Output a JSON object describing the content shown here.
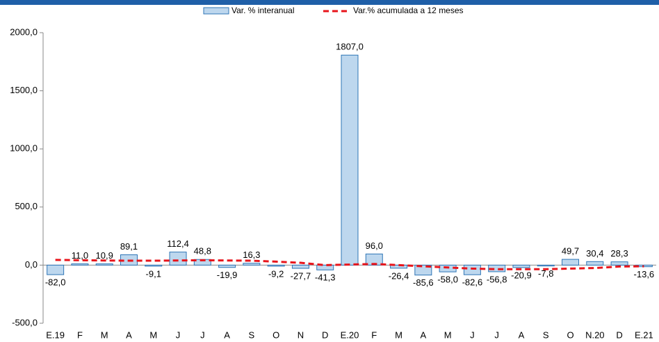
{
  "chart_data": {
    "type": "combo",
    "categories": [
      "E.19",
      "F",
      "M",
      "A",
      "M",
      "J",
      "J",
      "A",
      "S",
      "O",
      "N",
      "D",
      "E.20",
      "F",
      "M",
      "A",
      "M",
      "J",
      "J",
      "A",
      "S",
      "O",
      "N.20",
      "D",
      "E.21"
    ],
    "series": [
      {
        "name": "Var. % interanual",
        "type": "bar",
        "color": "#bdd7ee",
        "edge_color": "#2e75b6",
        "values": [
          -82.0,
          11.0,
          10.9,
          89.1,
          -9.1,
          112.4,
          48.8,
          -19.9,
          16.3,
          -9.2,
          -27.7,
          -41.3,
          1807.0,
          96.0,
          -26.4,
          -85.6,
          -58.0,
          -82.6,
          -56.8,
          -20.9,
          -7.8,
          49.7,
          30.4,
          28.3,
          -13.6
        ],
        "value_labels": [
          "-82,0",
          "11,0",
          "10,9",
          "89,1",
          "-9,1",
          "112,4",
          "48,8",
          "-19,9",
          "16,3",
          "-9,2",
          "-27,7",
          "-41,3",
          "1807,0",
          "96,0",
          "-26,4",
          "-85,6",
          "-58,0",
          "-82,6",
          "-56,8",
          "-20,9",
          "-7,8",
          "49,7",
          "30,4",
          "28,3",
          "-13,6"
        ]
      },
      {
        "name": "Var.% acumulada a 12 meses",
        "type": "line",
        "color": "#e8141b",
        "values": [
          45,
          42,
          40,
          38,
          38,
          40,
          42,
          40,
          38,
          30,
          20,
          0,
          5,
          10,
          0,
          -10,
          -20,
          -30,
          -35,
          -35,
          -35,
          -30,
          -25,
          -12,
          -10
        ]
      }
    ],
    "ylim": [
      -500,
      2000
    ],
    "yticks": [
      {
        "value": -500,
        "label": "-500,0"
      },
      {
        "value": 0,
        "label": "0,0"
      },
      {
        "value": 500,
        "label": "500,0"
      },
      {
        "value": 1000,
        "label": "1000,0"
      },
      {
        "value": 1500,
        "label": "1500,0"
      },
      {
        "value": 2000,
        "label": "2000,0"
      }
    ],
    "legend": "top"
  }
}
